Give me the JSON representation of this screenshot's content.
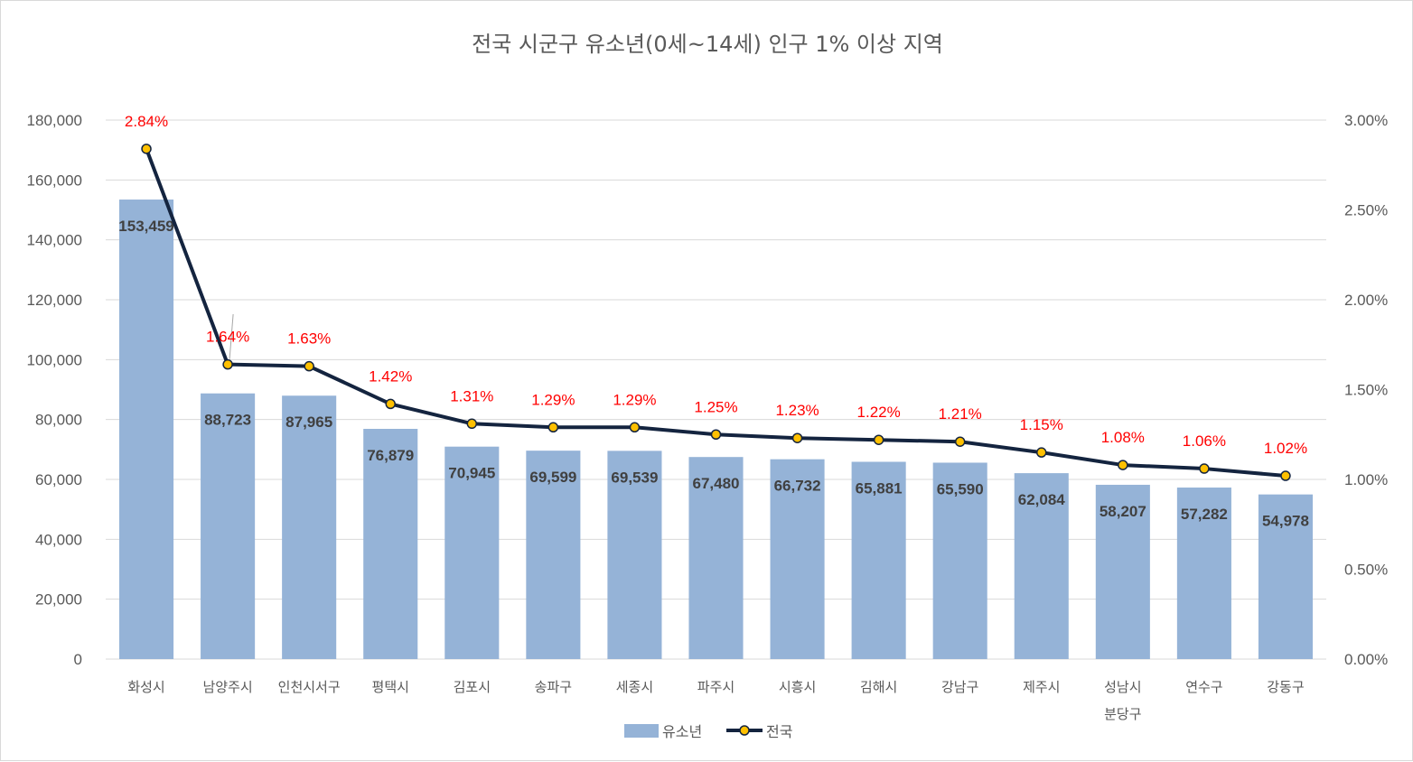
{
  "chart_data": {
    "type": "bar",
    "title": "전국 시군구 유소년(0세~14세) 인구 1% 이상 지역",
    "categories": [
      "화성시",
      "남양주시",
      "인천시서구",
      "평택시",
      "김포시",
      "송파구",
      "세종시",
      "파주시",
      "시흥시",
      "김해시",
      "강남구",
      "제주시",
      "성남시\n분당구",
      "연수구",
      "강동구"
    ],
    "series": [
      {
        "name": "유소년",
        "type": "bar",
        "axis": "left",
        "color": "#95b3d7",
        "values": [
          153459,
          88723,
          87965,
          76879,
          70945,
          69599,
          69539,
          67480,
          66732,
          65881,
          65590,
          62084,
          58207,
          57282,
          54978
        ],
        "labels": [
          "153,459",
          "88,723",
          "87,965",
          "76,879",
          "70,945",
          "69,599",
          "69,539",
          "67,480",
          "66,732",
          "65,881",
          "65,590",
          "62,084",
          "58,207",
          "57,282",
          "54,978"
        ]
      },
      {
        "name": "전국",
        "type": "line",
        "axis": "right",
        "color": "#14243f",
        "marker_color": "#ffc000",
        "values": [
          2.84,
          1.64,
          1.63,
          1.42,
          1.31,
          1.29,
          1.29,
          1.25,
          1.23,
          1.22,
          1.21,
          1.15,
          1.08,
          1.06,
          1.02
        ],
        "labels": [
          "2.84%",
          "1.64%",
          "1.63%",
          "1.42%",
          "1.31%",
          "1.29%",
          "1.29%",
          "1.25%",
          "1.23%",
          "1.22%",
          "1.21%",
          "1.15%",
          "1.08%",
          "1.06%",
          "1.02%"
        ],
        "label_color": "#ff0000"
      }
    ],
    "ylim": [
      0,
      180000
    ],
    "yticks": [
      "0",
      "20,000",
      "40,000",
      "60,000",
      "80,000",
      "100,000",
      "120,000",
      "140,000",
      "160,000",
      "180,000"
    ],
    "y2lim": [
      0,
      3
    ],
    "y2ticks": [
      "0.00%",
      "0.50%",
      "1.00%",
      "1.50%",
      "2.00%",
      "2.50%",
      "3.00%"
    ],
    "grid": true,
    "legend": "bottom"
  }
}
